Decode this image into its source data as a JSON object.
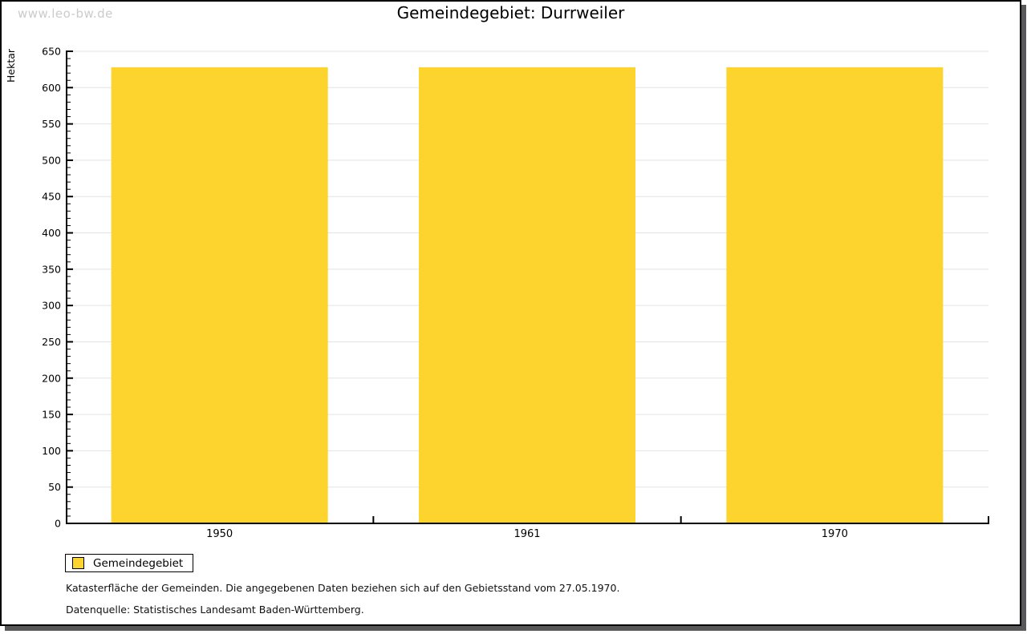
{
  "watermark": "www.leo-bw.de",
  "title": "Gemeindegebiet: Durrweiler",
  "chart_data": {
    "type": "bar",
    "title": "Gemeindegebiet: Durrweiler",
    "categories": [
      "1950",
      "1961",
      "1970"
    ],
    "series": [
      {
        "name": "Gemeindegebiet",
        "values": [
          628,
          628,
          628
        ]
      }
    ],
    "xlabel": "",
    "ylabel": "Hektar",
    "ylim": [
      0,
      650
    ],
    "ytick_major": 50,
    "ytick_minor": 10,
    "grid": true,
    "legend_position": "bottom-left",
    "bar_color": "#FDD32D"
  },
  "legend": {
    "items": [
      {
        "label": "Gemeindegebiet",
        "color": "#FDD32D"
      }
    ]
  },
  "footnotes": {
    "line1": "Katasterfläche der Gemeinden. Die angegebenen Daten beziehen sich auf den Gebietsstand vom 27.05.1970.",
    "line2": "Datenquelle: Statistisches Landesamt Baden-Württemberg."
  },
  "colors": {
    "bar": "#FDD32D",
    "axis": "#000000",
    "gridline": "#E3E3E3",
    "watermark": "#CBCBCB",
    "shadow": "#58585A",
    "background": "#FFFFFF"
  }
}
